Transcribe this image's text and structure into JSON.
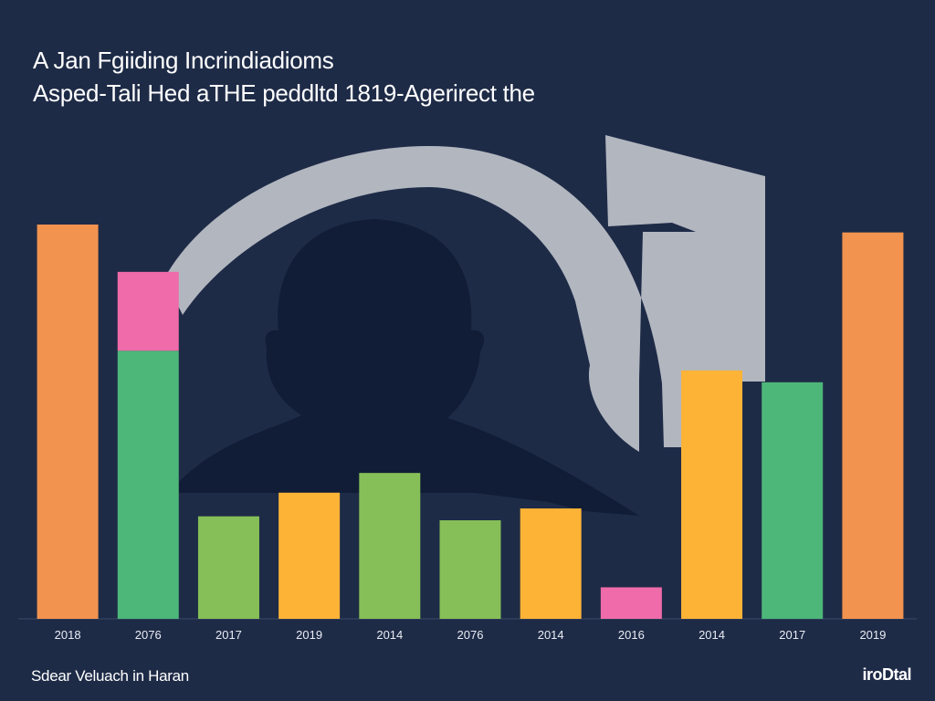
{
  "colors": {
    "background": "#1e2b47",
    "silhouette": "#111d36",
    "shape_gray": "#b2b6bf",
    "orange": "#f29350",
    "pink": "#ef6ba9",
    "green": "#4db779",
    "lime": "#86bf57",
    "yellow": "#fdb336",
    "text": "#ffffff"
  },
  "header": {
    "title_line1": "A Jan Fgiiding Incrindiadioms",
    "title_line2": "Asped-Tali Hed aTHE peddltd 1819-Agerirect the"
  },
  "footer": {
    "caption": "Sdear Veluach in Haran",
    "logo_text": "iroDtal"
  },
  "decor": {
    "background_icon": "person-silhouette-icon"
  },
  "chart_data": {
    "type": "bar",
    "categories": [
      "2018",
      "2076",
      "2017",
      "2019",
      "2014",
      "2076",
      "2014",
      "2016",
      "2014",
      "2017",
      "2019"
    ],
    "category_labels_as_shown": [
      "2018",
      "2076",
      "2017",
      "2019",
      "2014",
      "2076",
      "2014",
      "2016",
      "2014",
      "2017",
      "2019"
    ],
    "values": [
      100,
      88,
      26,
      32,
      37,
      25,
      28,
      8,
      63,
      60,
      98
    ],
    "stacked_top": [
      null,
      68,
      null,
      null,
      null,
      null,
      null,
      null,
      null,
      null,
      null
    ],
    "bar_colors": [
      "#f29350",
      "#4db779",
      "#86bf57",
      "#fdb336",
      "#86bf57",
      "#86bf57",
      "#fdb336",
      "#ef6ba9",
      "#fdb336",
      "#4db779",
      "#f29350"
    ],
    "stack_color": "#ef6ba9",
    "ylim": [
      0,
      100
    ],
    "title": "",
    "xlabel": "",
    "ylabel": "",
    "grid": false,
    "legend": "none"
  }
}
